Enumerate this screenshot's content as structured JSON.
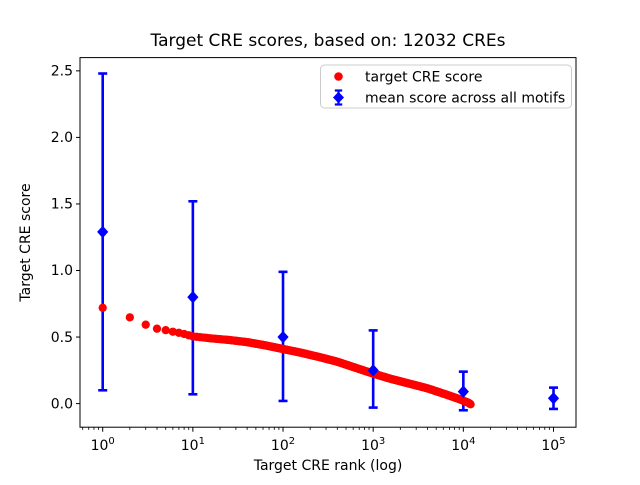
{
  "title": "Target CRE scores, based on: 12032 CREs",
  "axes": {
    "xlabel": "Target CRE rank (log)",
    "ylabel": "Target CRE score",
    "xtick_exponents": [
      0,
      1,
      2,
      3,
      4,
      5
    ],
    "ytick_values": [
      0.0,
      0.5,
      1.0,
      1.5,
      2.0,
      2.5
    ],
    "ytick_labels": [
      "0.0",
      "0.5",
      "1.0",
      "1.5",
      "2.0",
      "2.5"
    ]
  },
  "legend": {
    "entries": [
      {
        "label": "target CRE score",
        "marker": "circle",
        "color": "#ff0000"
      },
      {
        "label": "mean score across all motifs",
        "marker": "diamond-errorbar",
        "color": "#0000ff"
      }
    ]
  },
  "colors": {
    "red_series": "#ff0000",
    "blue_series": "#0000ff",
    "axis": "#000000",
    "legend_border": "#cccccc",
    "background": "#ffffff"
  },
  "chart_data": {
    "type": "scatter",
    "title": "Target CRE scores, based on: 12032 CREs",
    "xlabel": "Target CRE rank (log)",
    "ylabel": "Target CRE score",
    "x_scale": "log",
    "xlim": [
      0.56,
      178000
    ],
    "ylim": [
      -0.18,
      2.6
    ],
    "grid": false,
    "legend_position": "upper right",
    "n_cres": 12032,
    "series": [
      {
        "name": "target CRE score",
        "type": "scatter",
        "color": "#ff0000",
        "n_points": 12032,
        "rank_range": [
          1,
          12032
        ],
        "curve_control_points": {
          "log10_rank": [
            0,
            0.301,
            0.477,
            0.602,
            0.699,
            0.778,
            0.845,
            0.903,
            0.954,
            1.0,
            1.2,
            1.4,
            1.6,
            1.8,
            2.0,
            2.2,
            2.4,
            2.6,
            2.8,
            3.0,
            3.2,
            3.4,
            3.6,
            3.8,
            3.95,
            4.06,
            4.08
          ],
          "score": [
            0.72,
            0.648,
            0.593,
            0.563,
            0.552,
            0.54,
            0.532,
            0.523,
            0.513,
            0.505,
            0.49,
            0.478,
            0.462,
            0.438,
            0.41,
            0.382,
            0.35,
            0.315,
            0.27,
            0.225,
            0.185,
            0.15,
            0.115,
            0.07,
            0.035,
            0.005,
            -0.005
          ]
        }
      },
      {
        "name": "mean score across all motifs",
        "type": "errorbar",
        "color": "#0000ff",
        "x": [
          1,
          10,
          100,
          1000,
          10000,
          100000
        ],
        "y": [
          1.29,
          0.8,
          0.5,
          0.25,
          0.09,
          0.04
        ],
        "y_low": [
          0.1,
          0.07,
          0.02,
          -0.03,
          -0.05,
          -0.04
        ],
        "y_high": [
          2.48,
          1.52,
          0.99,
          0.55,
          0.24,
          0.12
        ]
      }
    ]
  }
}
